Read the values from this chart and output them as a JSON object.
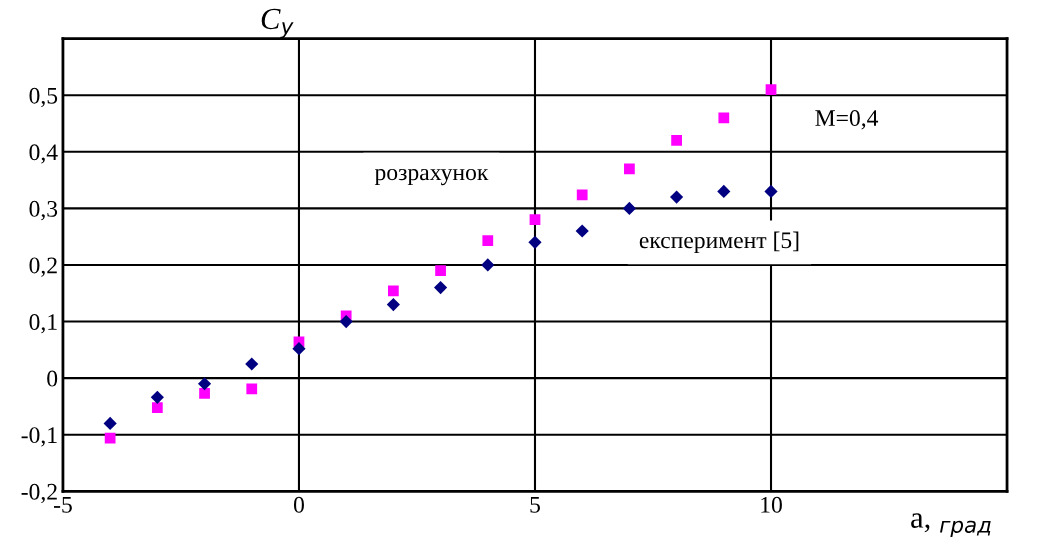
{
  "chart_data": {
    "type": "scatter",
    "xlabel": "a, $_{град}$",
    "ylabel": "C$_{y}$",
    "annotations": [
      "M=0,4"
    ],
    "series": [
      {
        "name": "розрахунок",
        "color": "#ff00ff",
        "marker": "square",
        "x": [
          -4,
          -3,
          -2,
          -1,
          0,
          1,
          2,
          3,
          4,
          5,
          6,
          7,
          8,
          9,
          10
        ],
        "values": [
          -0.106,
          -0.052,
          -0.027,
          -0.019,
          0.064,
          0.11,
          0.154,
          0.19,
          0.243,
          0.28,
          0.324,
          0.37,
          0.42,
          0.46,
          0.51
        ]
      },
      {
        "name": "експеримент [5]",
        "color": "#000080",
        "marker": "diamond",
        "x": [
          -4,
          -3,
          -2,
          -1,
          0,
          1,
          2,
          3,
          4,
          5,
          6,
          7,
          8,
          9,
          10
        ],
        "values": [
          -0.08,
          -0.034,
          -0.01,
          0.025,
          0.052,
          0.1,
          0.13,
          0.16,
          0.2,
          0.24,
          0.26,
          0.3,
          0.32,
          0.33,
          0.33
        ]
      }
    ],
    "xlim": [
      -5,
      15
    ],
    "xticks": [
      -5,
      0,
      5,
      10
    ],
    "ylim": [
      -0.2,
      0.6
    ],
    "yticks": [
      {
        "value": -0.2,
        "label": "-0,2"
      },
      {
        "value": -0.1,
        "label": "-0,1"
      },
      {
        "value": 0,
        "label": "0"
      },
      {
        "value": 0.1,
        "label": "0,1"
      },
      {
        "value": 0.2,
        "label": "0,2"
      },
      {
        "value": 0.3,
        "label": "0,3"
      },
      {
        "value": 0.4,
        "label": "0,4"
      },
      {
        "value": 0.5,
        "label": "0,5"
      }
    ],
    "grid": true,
    "legend": false
  }
}
